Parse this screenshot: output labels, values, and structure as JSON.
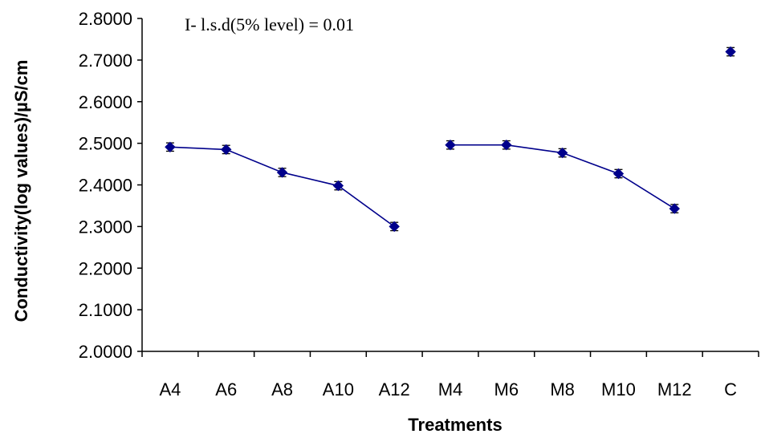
{
  "chart_data": {
    "type": "line",
    "annotation": "I- l.s.d(5% level) = 0.01",
    "xlabel": "Treatments",
    "ylabel": "Conductivity(log  values)/µS/cm",
    "categories": [
      "A4",
      "A6",
      "A8",
      "A10",
      "A12",
      "M4",
      "M6",
      "M8",
      "M10",
      "M12",
      "C"
    ],
    "y_ticks": [
      "2.0000",
      "2.1000",
      "2.2000",
      "2.3000",
      "2.4000",
      "2.5000",
      "2.6000",
      "2.7000",
      "2.8000"
    ],
    "ylim": [
      2.0,
      2.8
    ],
    "values": [
      2.491,
      2.485,
      2.43,
      2.398,
      2.3,
      2.496,
      2.496,
      2.477,
      2.427,
      2.343,
      2.72
    ],
    "error": 0.01,
    "line_groups": [
      [
        0,
        4
      ],
      [
        5,
        9
      ],
      [
        10,
        10
      ]
    ],
    "grid": false,
    "legend": "none",
    "colors": {
      "series": "#00008B",
      "axis": "#000000"
    }
  }
}
